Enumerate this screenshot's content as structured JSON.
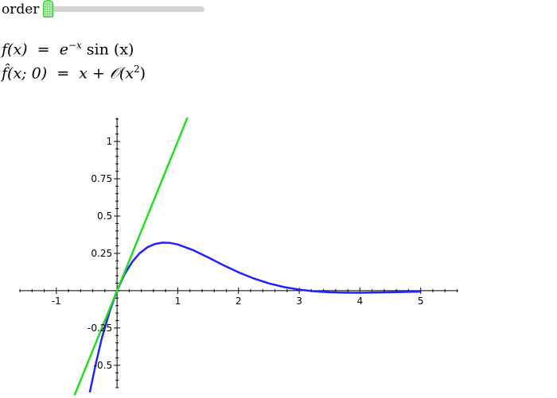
{
  "control": {
    "label": "order",
    "slider_value_fraction": 0.0
  },
  "formulas": {
    "f_lhs": "f(x)",
    "f_eq": "=",
    "f_rhs_base": "e",
    "f_rhs_exp": "−x",
    "f_rhs_tail": " sin (x)",
    "fhat_lhs": "f̂(x; 0)",
    "fhat_eq": "=",
    "fhat_rhs": "x + 𝒪(x",
    "fhat_rhs_exp": "2",
    "fhat_rhs_close": ")"
  },
  "chart_data": {
    "type": "line",
    "xlim": [
      -1.6,
      5.62
    ],
    "ylim": [
      -0.65,
      1.16
    ],
    "grid": false,
    "x_ticks": [
      "-1",
      "1",
      "2",
      "3",
      "4",
      "5"
    ],
    "y_ticks": [
      "1",
      "0.75",
      "0.5",
      "0.25",
      "-0.25",
      "-0.5"
    ],
    "series": [
      {
        "color": "#2222ff",
        "x": [
          -0.45,
          -0.35,
          -0.25,
          -0.125,
          0,
          0.125,
          0.25,
          0.375,
          0.5,
          0.625,
          0.75,
          0.875,
          1,
          1.25,
          1.5,
          1.75,
          2,
          2.25,
          2.5,
          2.75,
          3,
          3.25,
          3.5,
          3.75,
          4,
          4.5,
          5
        ],
        "y": [
          -0.682,
          -0.49,
          -0.318,
          -0.142,
          0,
          0.11,
          0.193,
          0.252,
          0.291,
          0.313,
          0.322,
          0.32,
          0.31,
          0.272,
          0.223,
          0.171,
          0.123,
          0.082,
          0.049,
          0.024,
          0.007,
          -0.004,
          -0.0106,
          -0.0134,
          -0.0139,
          -0.0109,
          -0.0065
        ]
      },
      {
        "color": "#22dd22",
        "x": [
          -0.7,
          1.16
        ],
        "y": [
          -0.7,
          1.16
        ]
      }
    ]
  }
}
